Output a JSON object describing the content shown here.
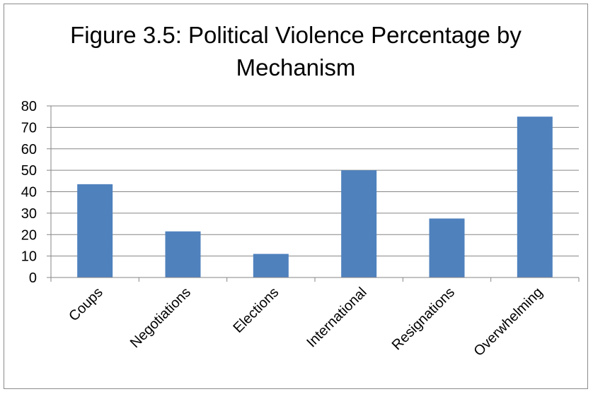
{
  "chart_data": {
    "type": "bar",
    "title_lines": [
      "Figure 3.5: Political Violence Percentage by",
      "Mechanism"
    ],
    "categories": [
      "Coups",
      "Negotiations",
      "Elections",
      "International",
      "Resignations",
      "Overwhelming"
    ],
    "values": [
      43.5,
      21.5,
      11,
      50,
      27.5,
      75
    ],
    "ylim": [
      0,
      80
    ],
    "yticks": [
      0,
      10,
      20,
      30,
      40,
      50,
      60,
      70,
      80
    ],
    "grid": true,
    "legend": "none",
    "bar_color": "#4f81bd"
  }
}
